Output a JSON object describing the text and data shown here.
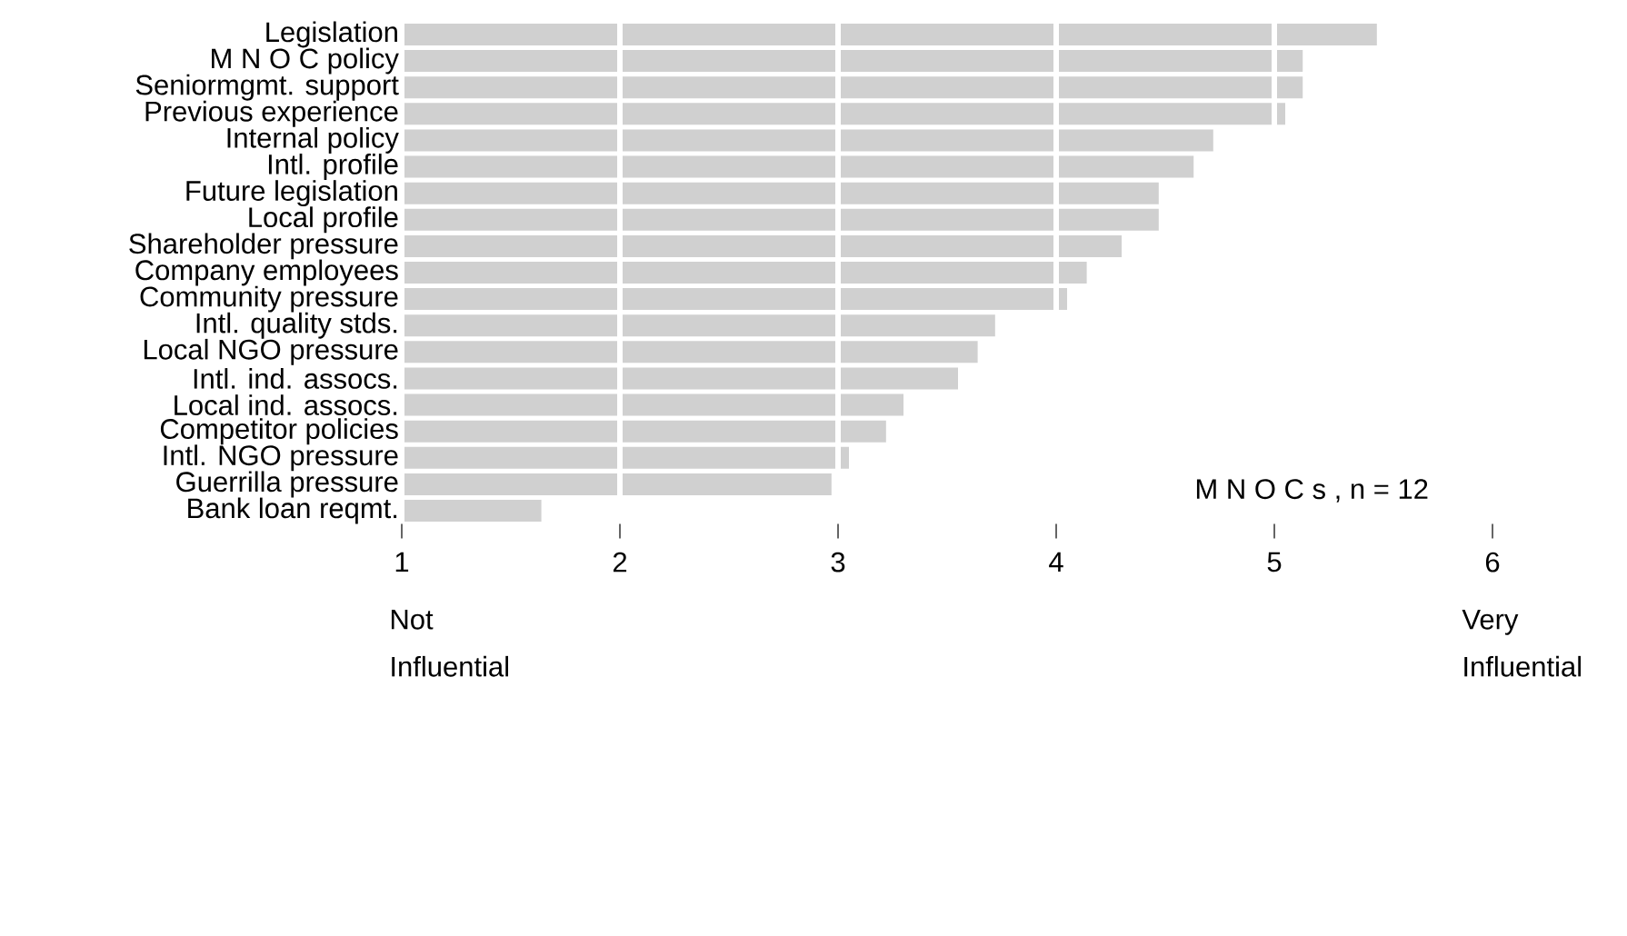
{
  "chart_data": {
    "type": "bar",
    "orientation": "horizontal",
    "color": "#d0d0d0",
    "grid": "x",
    "categories": [
      "Legislation",
      "M N O C policy",
      "Seniormgmt. support",
      "Previous experience",
      "Internal policy",
      "Intl. profile",
      "Future legislation",
      "Local profile",
      "Shareholder pressure",
      "Company employees",
      "Community pressure",
      "Intl. quality stds.",
      "Local NGO pressure",
      "Intl. ind. assocs.",
      "Local ind. assocs.",
      "Competitor policies",
      "Intl. NGO pressure",
      "Guerrilla pressure",
      "Bank loan reqmt."
    ],
    "values": [
      5.47,
      5.13,
      5.13,
      5.05,
      4.72,
      4.63,
      4.47,
      4.47,
      4.3,
      4.14,
      4.05,
      3.72,
      3.64,
      3.55,
      3.3,
      3.22,
      3.05,
      2.97,
      1.64
    ],
    "xlim": [
      1,
      6
    ],
    "xticks": [
      1,
      2,
      3,
      4,
      5,
      6
    ],
    "annotations": [
      "Not Influential",
      "Very Influential",
      "M N O C s , n = 12"
    ]
  }
}
